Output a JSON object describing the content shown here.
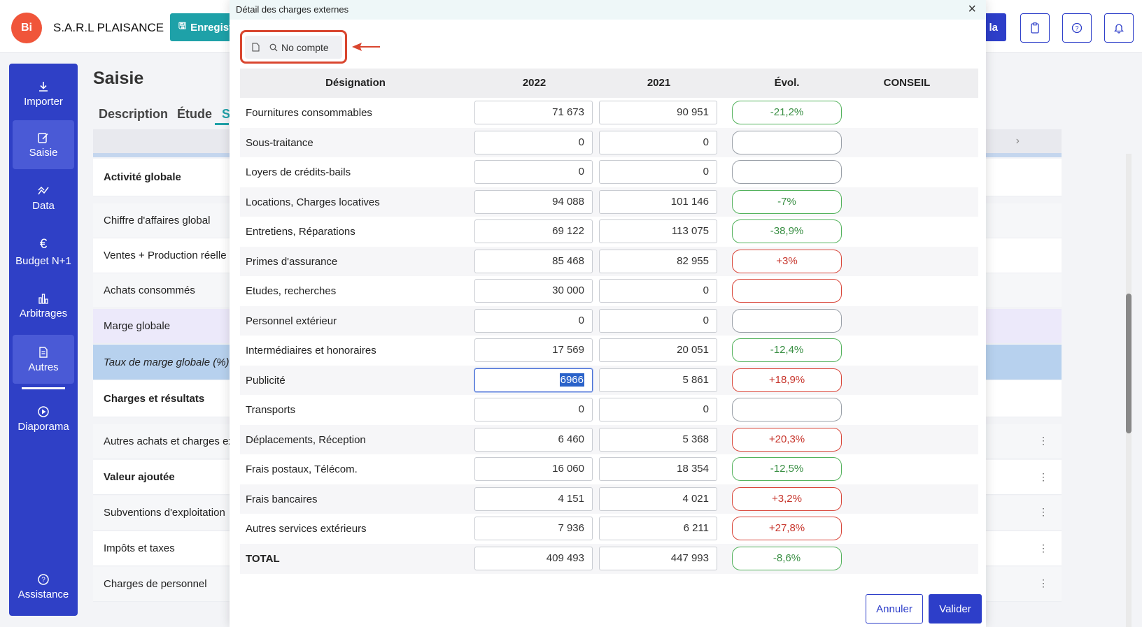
{
  "app": {
    "logo": "Bi",
    "company": "S.A.R.L PLAISANCE",
    "save_label": "Enregist",
    "right_button_label": "la",
    "top_icons": [
      "clipboard-icon",
      "help-icon",
      "bell-icon"
    ]
  },
  "sidebar": {
    "items": [
      {
        "label": "Importer",
        "icon": "download-icon"
      },
      {
        "label": "Saisie",
        "icon": "edit-icon"
      },
      {
        "label": "Data",
        "icon": "chart-line-icon"
      },
      {
        "label": "Budget N+1",
        "icon": "euro-icon"
      },
      {
        "label": "Arbitrages",
        "icon": "bar-chart-icon"
      },
      {
        "label": "Autres",
        "icon": "document-icon"
      },
      {
        "label": "Diaporama",
        "icon": "play-icon"
      },
      {
        "label": "Assistance",
        "icon": "question-icon"
      }
    ]
  },
  "main": {
    "title": "Saisie",
    "tabs": [
      "Description",
      "Étude",
      "S"
    ],
    "rows": [
      {
        "label": "Activité globale"
      },
      {
        "label": "Chiffre d'affaires global"
      },
      {
        "label": "Ventes + Production réelle"
      },
      {
        "label": "Achats consommés"
      },
      {
        "label": "Marge globale"
      },
      {
        "label": "Taux de marge globale (%)"
      },
      {
        "label": "Charges et résultats"
      },
      {
        "label": "Autres achats et charges ex"
      },
      {
        "label": "Valeur ajoutée"
      },
      {
        "label": "Subventions d'exploitation"
      },
      {
        "label": "Impôts et taxes"
      },
      {
        "label": "Charges de personnel"
      }
    ]
  },
  "modal": {
    "title": "Détail des charges externes",
    "toolbar_button": "No compte",
    "columns": {
      "designation": "Désignation",
      "y1": "2022",
      "y2": "2021",
      "evol": "Évol.",
      "conseil": "CONSEIL"
    },
    "rows": [
      {
        "label": "Fournitures consommables",
        "y1": "71 673",
        "y2": "90 951",
        "evol": "-21,2%"
      },
      {
        "label": "Sous-traitance",
        "y1": "0",
        "y2": "0",
        "evol": ""
      },
      {
        "label": "Loyers de crédits-bails",
        "y1": "0",
        "y2": "0",
        "evol": ""
      },
      {
        "label": "Locations, Charges locatives",
        "y1": "94 088",
        "y2": "101 146",
        "evol": "-7%"
      },
      {
        "label": "Entretiens, Réparations",
        "y1": "69 122",
        "y2": "113 075",
        "evol": "-38,9%"
      },
      {
        "label": "Primes d'assurance",
        "y1": "85 468",
        "y2": "82 955",
        "evol": "+3%"
      },
      {
        "label": "Etudes, recherches",
        "y1": "30 000",
        "y2": "0",
        "evol": ""
      },
      {
        "label": "Personnel extérieur",
        "y1": "0",
        "y2": "0",
        "evol": ""
      },
      {
        "label": "Intermédiaires et honoraires",
        "y1": "17 569",
        "y2": "20 051",
        "evol": "-12,4%"
      },
      {
        "label": "Publicité",
        "y1": "6966",
        "y2": "5 861",
        "evol": "+18,9%"
      },
      {
        "label": "Transports",
        "y1": "0",
        "y2": "0",
        "evol": ""
      },
      {
        "label": "Déplacements, Réception",
        "y1": "6 460",
        "y2": "5 368",
        "evol": "+20,3%"
      },
      {
        "label": "Frais postaux, Télécom.",
        "y1": "16 060",
        "y2": "18 354",
        "evol": "-12,5%"
      },
      {
        "label": "Frais bancaires",
        "y1": "4 151",
        "y2": "4 021",
        "evol": "+3,2%"
      },
      {
        "label": "Autres services extérieurs",
        "y1": "7 936",
        "y2": "6 211",
        "evol": "+27,8%"
      },
      {
        "label": "TOTAL",
        "y1": "409 493",
        "y2": "447 993",
        "evol": "-8,6%"
      }
    ],
    "cancel_label": "Annuler",
    "submit_label": "Valider"
  },
  "colors": {
    "primary": "#2f40c6",
    "teal": "#1ea1a8",
    "positive": "#3a8f44",
    "negative": "#c7352c",
    "highlight": "#d9462f"
  }
}
